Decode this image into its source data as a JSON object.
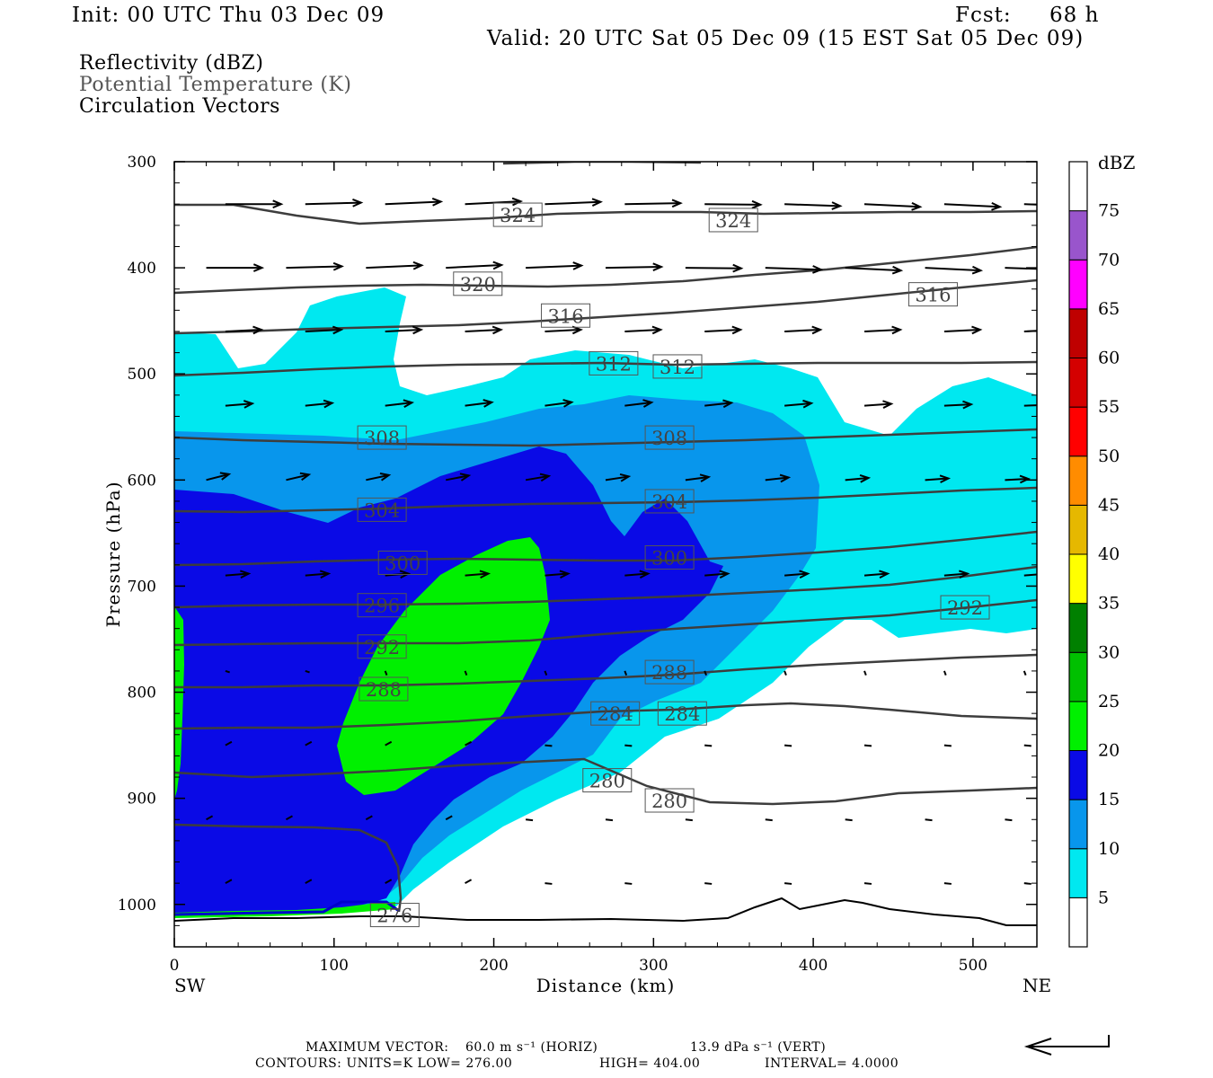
{
  "header": {
    "init": "Init: 00 UTC Thu 03 Dec 09",
    "fcst_label": "Fcst:",
    "fcst_value": "68 h",
    "valid": "Valid: 20 UTC Sat 05 Dec 09 (15 EST Sat 05 Dec 09)"
  },
  "legend": {
    "field1": "Reflectivity (dBZ)",
    "field2": "Potential Temperature (K)",
    "field3": "Circulation Vectors"
  },
  "footer": {
    "max_vector_prefix": "MAXIMUM VECTOR:",
    "horiz": "60.0 m s⁻¹ (HORIZ)",
    "vert": "13.9 dPa s⁻¹ (VERT)",
    "contours": "CONTOURS:  UNITS=K  LOW=  276.00",
    "high": "HIGH=  404.00",
    "interval": "INTERVAL=   4.0000"
  },
  "chart_data": {
    "type": "cross-section",
    "xlabel": "Distance (km)",
    "ylabel": "Pressure (hPa)",
    "x_left_label": "SW",
    "x_right_label": "NE",
    "xlim": [
      0,
      540
    ],
    "ylim": [
      1040,
      300
    ],
    "x_ticks": [
      0,
      100,
      200,
      300,
      400,
      500
    ],
    "y_ticks": [
      300,
      400,
      500,
      600,
      700,
      800,
      900,
      1000
    ],
    "colorbar": {
      "title": "dBZ",
      "levels": [
        5,
        10,
        15,
        20,
        25,
        30,
        35,
        40,
        45,
        50,
        55,
        60,
        65,
        70,
        75
      ],
      "colors": [
        "#00e8f0",
        "#0896ec",
        "#0a0ae6",
        "#00f000",
        "#00c000",
        "#008000",
        "#ffff00",
        "#e6b800",
        "#ff8c00",
        "#ff0000",
        "#d40000",
        "#bf0000",
        "#ff00ff",
        "#9955cc",
        "#ffffff"
      ]
    },
    "theta_contours_K": [
      {
        "label": "324",
        "at_km": [
          215,
          350
        ],
        "p": [
          350,
          355
        ]
      },
      {
        "label": "320",
        "at_km": [
          190
        ],
        "p": [
          415
        ]
      },
      {
        "label": "316",
        "at_km": [
          245,
          475
        ],
        "p": [
          445,
          425
        ]
      },
      {
        "label": "312",
        "at_km": [
          275,
          315
        ],
        "p": [
          490,
          493
        ]
      },
      {
        "label": "308",
        "at_km": [
          130,
          310
        ],
        "p": [
          560,
          560
        ]
      },
      {
        "label": "304",
        "at_km": [
          130,
          310
        ],
        "p": [
          628,
          620
        ]
      },
      {
        "label": "300",
        "at_km": [
          143,
          310
        ],
        "p": [
          678,
          673
        ]
      },
      {
        "label": "296",
        "at_km": [
          130
        ],
        "p": [
          718
        ]
      },
      {
        "label": "292",
        "at_km": [
          130,
          495
        ],
        "p": [
          757,
          720
        ]
      },
      {
        "label": "288",
        "at_km": [
          131,
          310
        ],
        "p": [
          797,
          781
        ]
      },
      {
        "label": "284",
        "at_km": [
          276,
          318
        ],
        "p": [
          820,
          820
        ]
      },
      {
        "label": "280",
        "at_km": [
          271,
          310
        ],
        "p": [
          883,
          902
        ]
      },
      {
        "label": "276",
        "at_km": [
          138
        ],
        "p": [
          1010
        ]
      }
    ],
    "contour_units": "K",
    "contour_low": 276.0,
    "contour_high": 404.0,
    "contour_interval": 4.0,
    "max_vector_horiz_ms": 60.0,
    "max_vector_vert_dPa_s": 13.9
  }
}
